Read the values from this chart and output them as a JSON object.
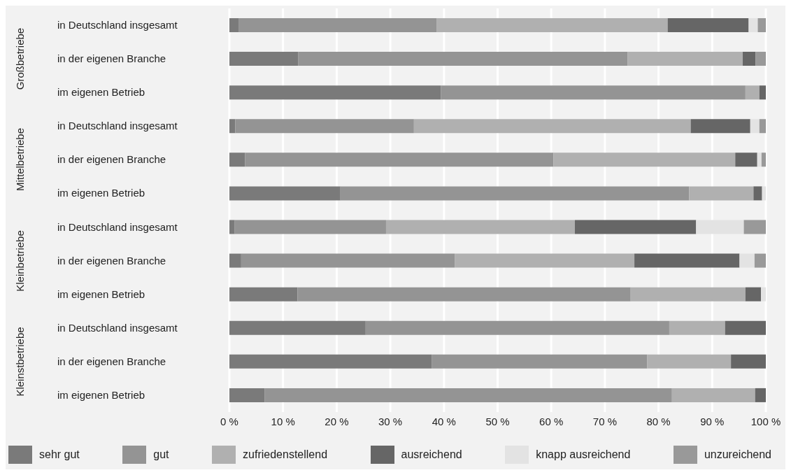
{
  "chart_data": {
    "type": "bar",
    "orientation": "horizontal",
    "stacked": true,
    "categories": [
      "in Deutschland insgesamt",
      "in der eigenen Branche",
      "im eigenen Betrieb",
      "in Deutschland insgesamt",
      "in der eigenen Branche",
      "im eigenen Betrieb",
      "in Deutschland insgesamt",
      "in der eigenen Branche",
      "im eigenen Betrieb",
      "in Deutschland insgesamt",
      "in der eigenen Branche",
      "im eigenen Betrieb"
    ],
    "series": [
      {
        "name": "sehr gut",
        "color": "#7a7a7a",
        "values": [
          1.7,
          12.8,
          39.4,
          1.1,
          2.9,
          20.7,
          1.0,
          2.2,
          12.7,
          25.4,
          37.7,
          6.6
        ]
      },
      {
        "name": "gut",
        "color": "#949494",
        "values": [
          36.9,
          61.4,
          56.8,
          33.3,
          57.5,
          65.0,
          28.2,
          39.8,
          62.1,
          56.6,
          40.2,
          75.9
        ]
      },
      {
        "name": "zufriedenstellend",
        "color": "#b0b0b0",
        "values": [
          43.1,
          21.5,
          2.6,
          51.6,
          33.9,
          12.0,
          35.2,
          33.5,
          21.4,
          10.4,
          15.6,
          15.5
        ]
      },
      {
        "name": "ausreichend",
        "color": "#666666",
        "values": [
          15.1,
          2.4,
          1.2,
          11.1,
          4.1,
          1.6,
          22.6,
          19.6,
          2.9,
          7.6,
          6.5,
          2.0
        ]
      },
      {
        "name": "knapp ausreichend",
        "color": "#e3e3e3",
        "values": [
          1.7,
          0,
          0,
          1.7,
          0.8,
          0.7,
          8.9,
          2.8,
          0.9,
          0,
          0,
          0
        ]
      },
      {
        "name": "unzureichend",
        "color": "#999999",
        "values": [
          1.5,
          1.9,
          0,
          1.2,
          0.8,
          0,
          4.1,
          2.1,
          0,
          0,
          0,
          0
        ]
      }
    ],
    "xlim": [
      0,
      100
    ],
    "xticks": [
      {
        "value": 0,
        "label": "0 %"
      },
      {
        "value": 10,
        "label": "10 %"
      },
      {
        "value": 20,
        "label": "20 %"
      },
      {
        "value": 30,
        "label": "30 %"
      },
      {
        "value": 40,
        "label": "40 %"
      },
      {
        "value": 50,
        "label": "50 %"
      },
      {
        "value": 60,
        "label": "60 %"
      },
      {
        "value": 70,
        "label": "70 %"
      },
      {
        "value": 80,
        "label": "80 %"
      },
      {
        "value": 90,
        "label": "90 %"
      },
      {
        "value": 100,
        "label": "100 %"
      }
    ],
    "annotations": [
      "Großbetriebe",
      "Mittelbetriebe",
      "Kleinbetriebe",
      "Kleinstbetriebe"
    ],
    "grid": "x",
    "legend": "bottom"
  }
}
